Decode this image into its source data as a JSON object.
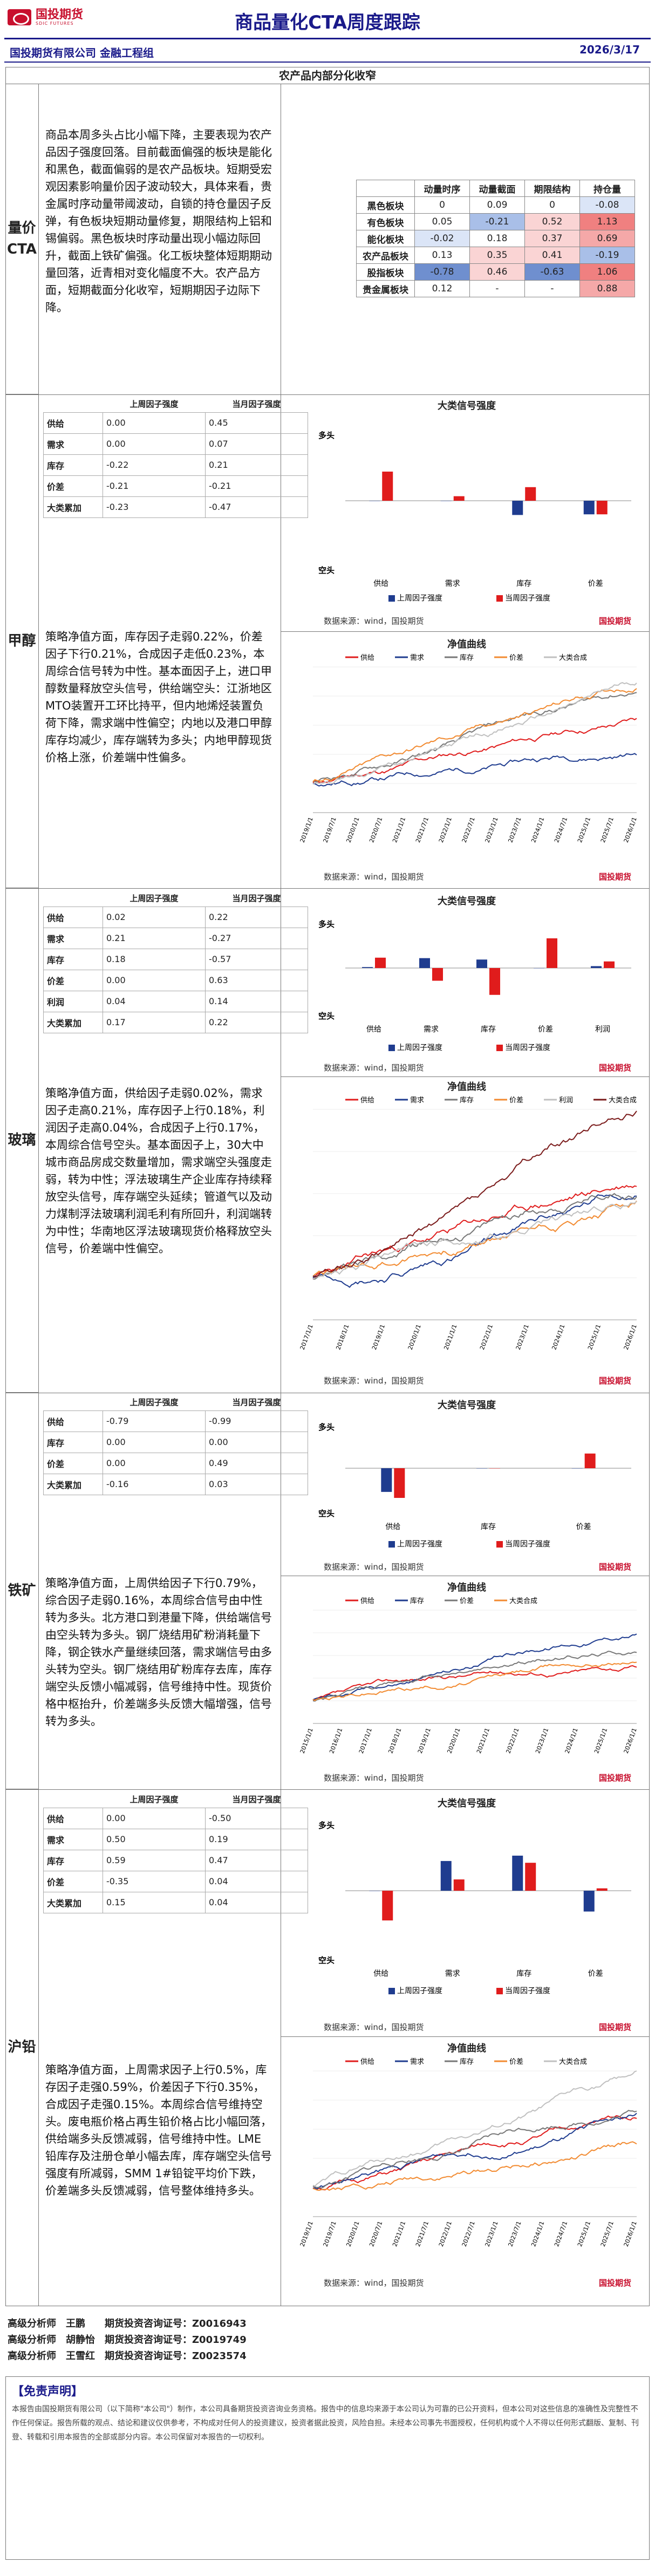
{
  "header": {
    "brand": "国投期货",
    "brand_sub": "SDIC FUTURES",
    "title": "商品量化CTA周度跟踪",
    "date": "2026/3/17",
    "org": "国投期货有限公司 金融工程组"
  },
  "section_title": "农产品内部分化收窄",
  "overview": {
    "label": "量价CTA",
    "text": "商品本周多头占比小幅下降，主要表现为农产品因子强度回落。目前截面偏强的板块是能化和黑色，截面偏弱的是农产品板块。短期受宏观因素影响量价因子波动较大，具体来看，贵金属时序动量带阈波动，自锁的持仓量因子反弹，有色板块短期动量修复，期限结构上铝和锡偏弱。黑色板块时序动量出现小幅边际回升，截面上铁矿偏强。化工板块整体短期期动量回落，近青相对变化幅度不大。农产品方面，短期截面分化收窄，短期期因子边际下降。",
    "table_header": [
      "",
      "动量时序",
      "动量截面",
      "期限结构",
      "持仓量"
    ],
    "rows": [
      {
        "name": "黑色板块",
        "v": [
          "0",
          "0.09",
          "0",
          "-0.08"
        ]
      },
      {
        "name": "有色板块",
        "v": [
          "0.05",
          "-0.21",
          "0.52",
          "1.13"
        ]
      },
      {
        "name": "能化板块",
        "v": [
          "-0.02",
          "0.18",
          "0.37",
          "0.69"
        ]
      },
      {
        "name": "农产品板块",
        "v": [
          "0.13",
          "0.35",
          "0.41",
          "-0.19"
        ]
      },
      {
        "name": "股指板块",
        "v": [
          "-0.78",
          "0.46",
          "-0.63",
          "1.06"
        ]
      },
      {
        "name": "贵金属板块",
        "v": [
          "0.12",
          "-",
          "-",
          "0.88"
        ]
      }
    ]
  },
  "common": {
    "col_week": "上周因子强度",
    "col_now": "当月因子强度",
    "signal_title": "大类信号强度",
    "nav_title": "净值曲线",
    "duo": "多头",
    "kong": "空头",
    "legend_last": "上周因子强度",
    "legend_now": "当周因子强度",
    "source": "数据来源：wind，国投期货"
  },
  "methanol": {
    "label": "甲醇",
    "rows": [
      {
        "name": "供给",
        "w": "0.00",
        "m": "0.45"
      },
      {
        "name": "需求",
        "w": "0.00",
        "m": "0.07"
      },
      {
        "name": "库存",
        "w": "-0.22",
        "m": "0.21"
      },
      {
        "name": "价差",
        "w": "-0.21",
        "m": "-0.21"
      },
      {
        "name": "大类累加",
        "w": "-0.23",
        "m": "-0.47"
      }
    ],
    "cats": [
      "供给",
      "需求",
      "库存",
      "价差"
    ],
    "text": "策略净值方面，库存因子走弱0.22%，价差因子下行0.21%，合成因子走低0.23%，本周综合信号转为中性。基本面因子上，进口甲醇数量释放空头信号，供给端空头：江浙地区MTO装置开工环比持平，但内地烯烃装置负荷下降，需求端中性偏空；内地以及港口甲醇库存均减少，库存端转为多头；内地甲醇现货价格上涨，价差端中性偏多。",
    "nav_legend": [
      "供给",
      "需求",
      "库存",
      "价差",
      "大类合成"
    ],
    "nav_x": [
      "2019/1/1",
      "2019/7/1",
      "2020/1/1",
      "2020/7/1",
      "2021/1/1",
      "2021/7/1",
      "2022/1/1",
      "2022/7/1",
      "2023/1/1",
      "2023/7/1",
      "2024/1/1",
      "2024/7/1",
      "2025/1/1",
      "2025/7/1",
      "2026/1/1"
    ]
  },
  "glass": {
    "label": "玻璃",
    "rows": [
      {
        "name": "供给",
        "w": "0.02",
        "m": "0.22"
      },
      {
        "name": "需求",
        "w": "0.21",
        "m": "-0.27"
      },
      {
        "name": "库存",
        "w": "0.18",
        "m": "-0.57"
      },
      {
        "name": "价差",
        "w": "0.00",
        "m": "0.63"
      },
      {
        "name": "利润",
        "w": "0.04",
        "m": "0.14"
      },
      {
        "name": "大类累加",
        "w": "0.17",
        "m": "0.22"
      }
    ],
    "cats": [
      "供给",
      "需求",
      "库存",
      "价差",
      "利润"
    ],
    "text": "策略净值方面，供给因子走弱0.02%，需求因子走高0.21%，库存因子上行0.18%，利润因子走高0.04%，合成因子上行0.17%，本周综合信号空头。基本面因子上，30大中城市商品房成交数量增加，需求端空头强度走弱，转为中性；浮法玻璃生产企业库存持续释放空头信号，库存端空头延续；管道气以及动力煤制浮法玻璃利润毛利有所回升，利润端转为中性；华南地区浮法玻璃现货价格释放空头信号，价差端中性偏空。",
    "nav_legend": [
      "供给",
      "需求",
      "库存",
      "价差",
      "利润",
      "大类合成"
    ],
    "nav_x": [
      "2017/1/1",
      "2018/1/1",
      "2019/1/1",
      "2020/1/1",
      "2021/1/1",
      "2022/1/1",
      "2023/1/1",
      "2024/1/1",
      "2025/1/1",
      "2026/1/1"
    ]
  },
  "iron": {
    "label": "铁矿",
    "rows": [
      {
        "name": "供给",
        "w": "-0.79",
        "m": "-0.99"
      },
      {
        "name": "库存",
        "w": "0.00",
        "m": "0.00"
      },
      {
        "name": "价差",
        "w": "0.00",
        "m": "0.49"
      },
      {
        "name": "大类累加",
        "w": "-0.16",
        "m": "0.03"
      }
    ],
    "cats": [
      "供给",
      "库存",
      "价差"
    ],
    "text": "策略净值方面，上周供给因子下行0.79%，综合因子走弱0.16%，本周综合信号由中性转为多头。北方港口到港量下降，供给端信号由空头转为多头。钢厂烧结用矿粉消耗量下降，钢企铁水产量继续回落，需求端信号由多头转为空头。钢厂烧结用矿粉库存去库，库存端空头反馈小幅减弱，信号维持中性。现货价格中枢抬升，价差端多头反馈大幅增强，信号转为多头。",
    "nav_legend": [
      "供给",
      "库存",
      "价差",
      "大类合成"
    ],
    "nav_x": [
      "2015/1/1",
      "2016/1/1",
      "2017/1/1",
      "2018/1/1",
      "2019/1/1",
      "2020/1/1",
      "2021/1/1",
      "2022/1/1",
      "2023/1/1",
      "2024/1/1",
      "2025/1/1",
      "2026/1/1"
    ]
  },
  "lead": {
    "label": "沪铅",
    "rows": [
      {
        "name": "供给",
        "w": "0.00",
        "m": "-0.50"
      },
      {
        "name": "需求",
        "w": "0.50",
        "m": "0.19"
      },
      {
        "name": "库存",
        "w": "0.59",
        "m": "0.47"
      },
      {
        "name": "价差",
        "w": "-0.35",
        "m": "0.04"
      },
      {
        "name": "大类累加",
        "w": "0.15",
        "m": "0.04"
      }
    ],
    "cats": [
      "供给",
      "需求",
      "库存",
      "价差"
    ],
    "text": "策略净值方面，上周需求因子上行0.5%，库存因子走强0.59%，价差因子下行0.35%，合成因子走强0.15%。本周综合信号维持空头。废电瓶价格占再生铅价格占比小幅回落，供给端多头反馈减弱，信号维持中性。LME铅库存及注册仓单小幅去库，库存端空头信号强度有所减弱，SMM 1#铅锭平均价下跌，价差端多头反馈减弱，信号整体维持多头。",
    "nav_legend": [
      "供给",
      "需求",
      "库存",
      "价差",
      "大类合成"
    ],
    "nav_x": [
      "2019/1/1",
      "2019/7/1",
      "2020/1/1",
      "2020/7/1",
      "2021/1/1",
      "2021/7/1",
      "2022/1/1",
      "2022/7/1",
      "2023/1/1",
      "2023/7/1",
      "2024/1/1",
      "2024/7/1",
      "2025/1/1",
      "2025/7/1",
      "2026/1/1"
    ]
  },
  "authors": [
    "高级分析师　王鹏　　期货投资咨询证号：Z0016943",
    "高级分析师　胡静怡　期货投资咨询证号：Z0019749",
    "高级分析师　王雪红　期货投资咨询证号：Z0023574"
  ],
  "disclaimer": {
    "title": "【免责声明】",
    "text": "本报告由国投期货有限公司（以下简称\"本公司\"）制作，本公司具备期货投资咨询业务资格。报告中的信息均来源于本公司认为可靠的已公开资料，但本公司对这些信息的准确性及完整性不作任何保证。报告所载的观点、结论和建议仅供参考，不构成对任何人的投资建议，投资者据此投资，风险自担。未经本公司事先书面授权，任何机构或个人不得以任何形式翻版、复制、刊登、转载和引用本报告的全部或部分内容。本公司保留对本报告的一切权利。"
  }
}
